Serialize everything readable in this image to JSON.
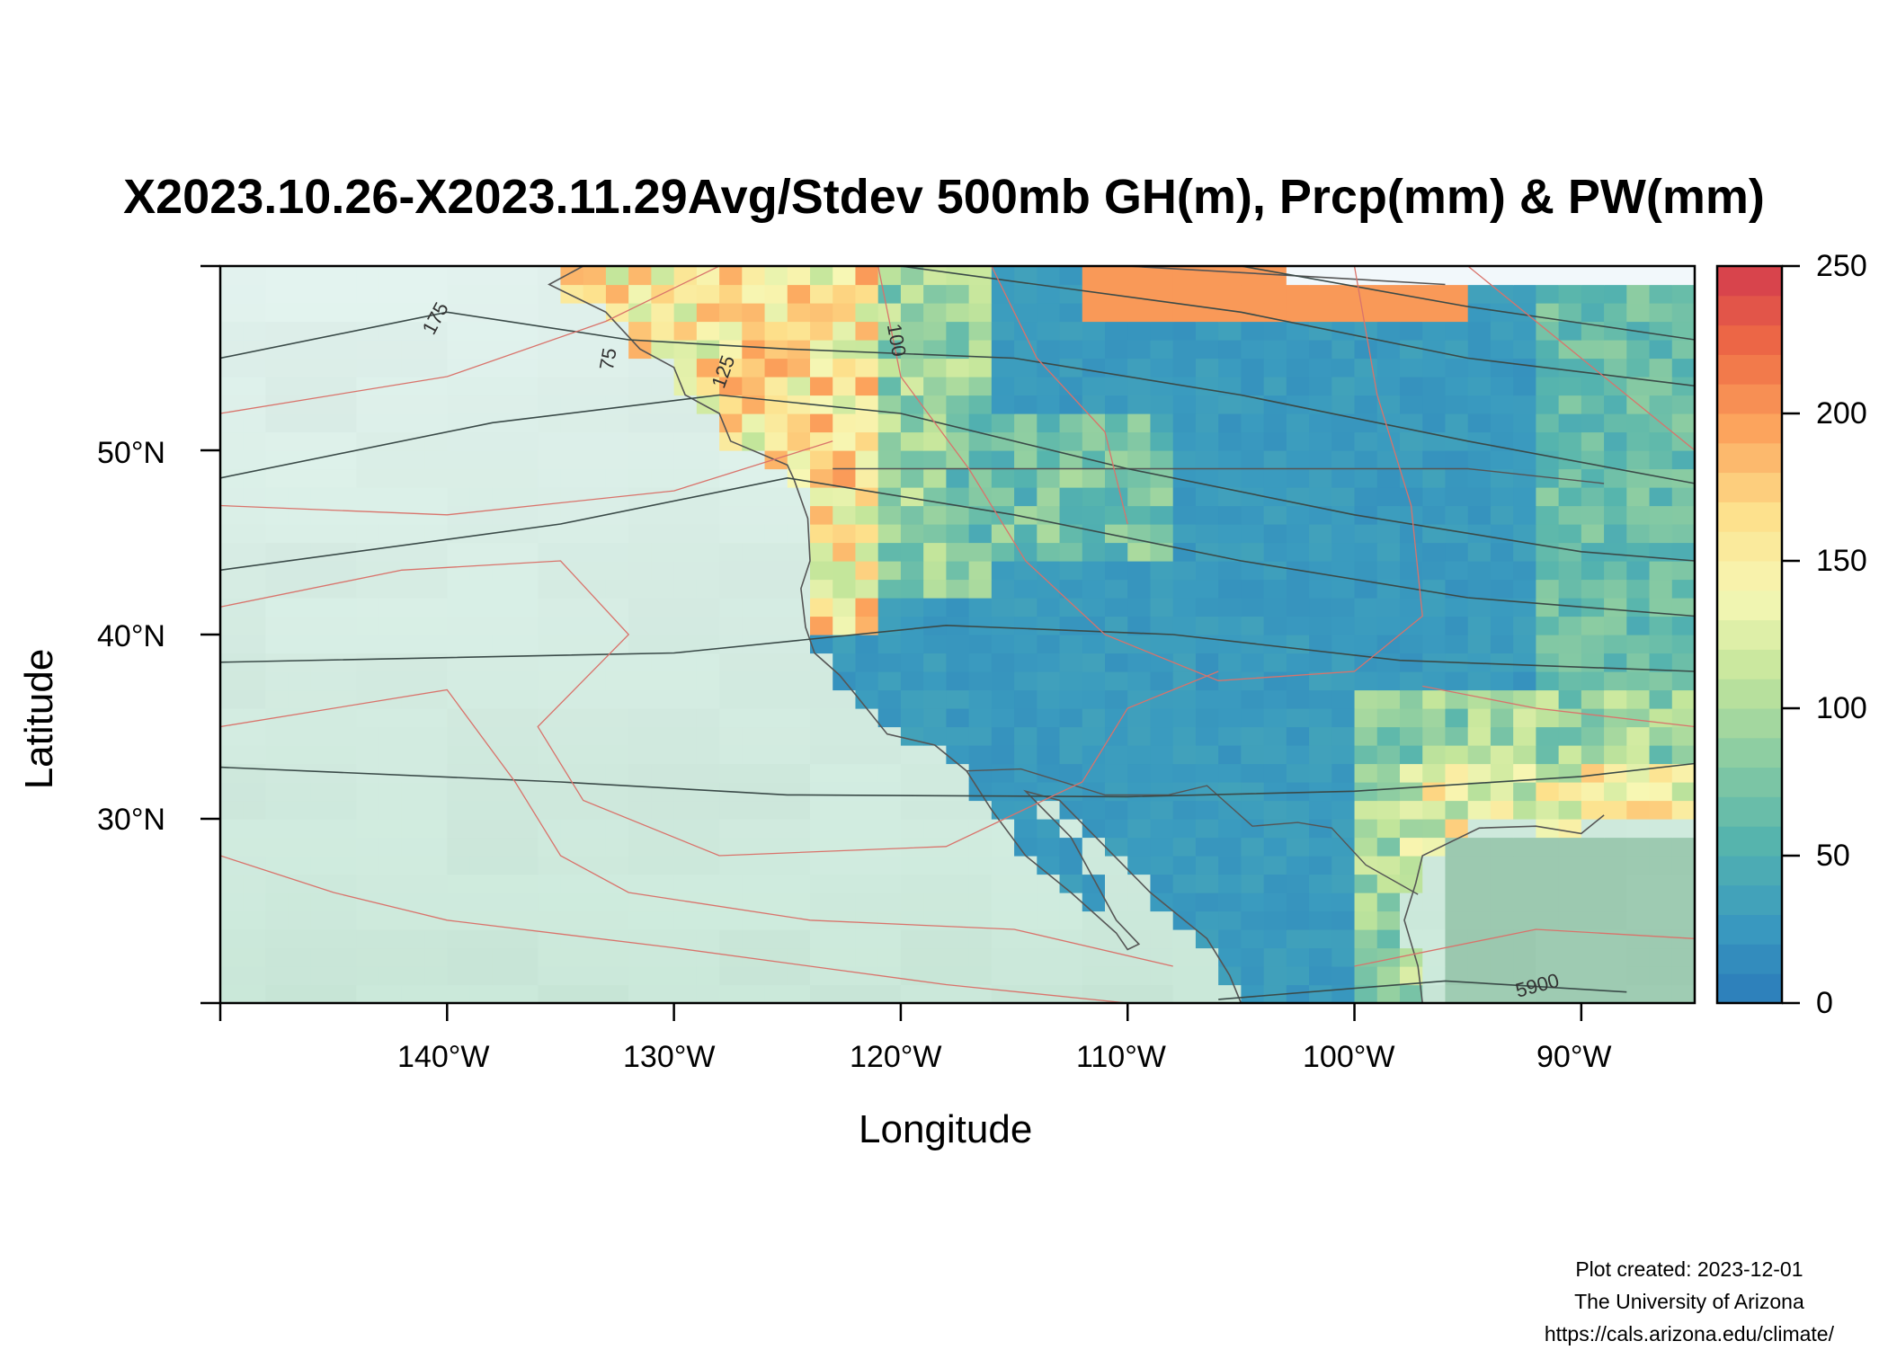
{
  "title": "X2023.10.26-X2023.11.29Avg/Stdev 500mb GH(m), Prcp(mm) & PW(mm)",
  "x_axis": {
    "label": "Longitude",
    "ticks": [
      "140°W",
      "130°W",
      "120°W",
      "110°W",
      "100°W",
      "90°W"
    ]
  },
  "y_axis": {
    "label": "Latitude",
    "ticks": [
      "50°N",
      "40°N",
      "30°N"
    ]
  },
  "colorbar": {
    "ticks": [
      "0",
      "50",
      "100",
      "150",
      "200",
      "250"
    ],
    "range": [
      0,
      250
    ],
    "colors_low_to_high": [
      "#2b7bba",
      "#3a9bbf",
      "#57b5ad",
      "#8bcca2",
      "#c4e69b",
      "#f7f7b4",
      "#fde08b",
      "#fca55d",
      "#ef6b45",
      "#d33c4e"
    ]
  },
  "map": {
    "lon_range": [
      -150,
      -85
    ],
    "lat_range": [
      20,
      60
    ],
    "contour_labels": [
      "175",
      "125",
      "100",
      "75",
      "5900"
    ]
  },
  "credits": {
    "line1": "Plot created: 2023-12-01",
    "line2": "The University of Arizona",
    "line3": "https://cals.arizona.edu/climate/"
  }
}
